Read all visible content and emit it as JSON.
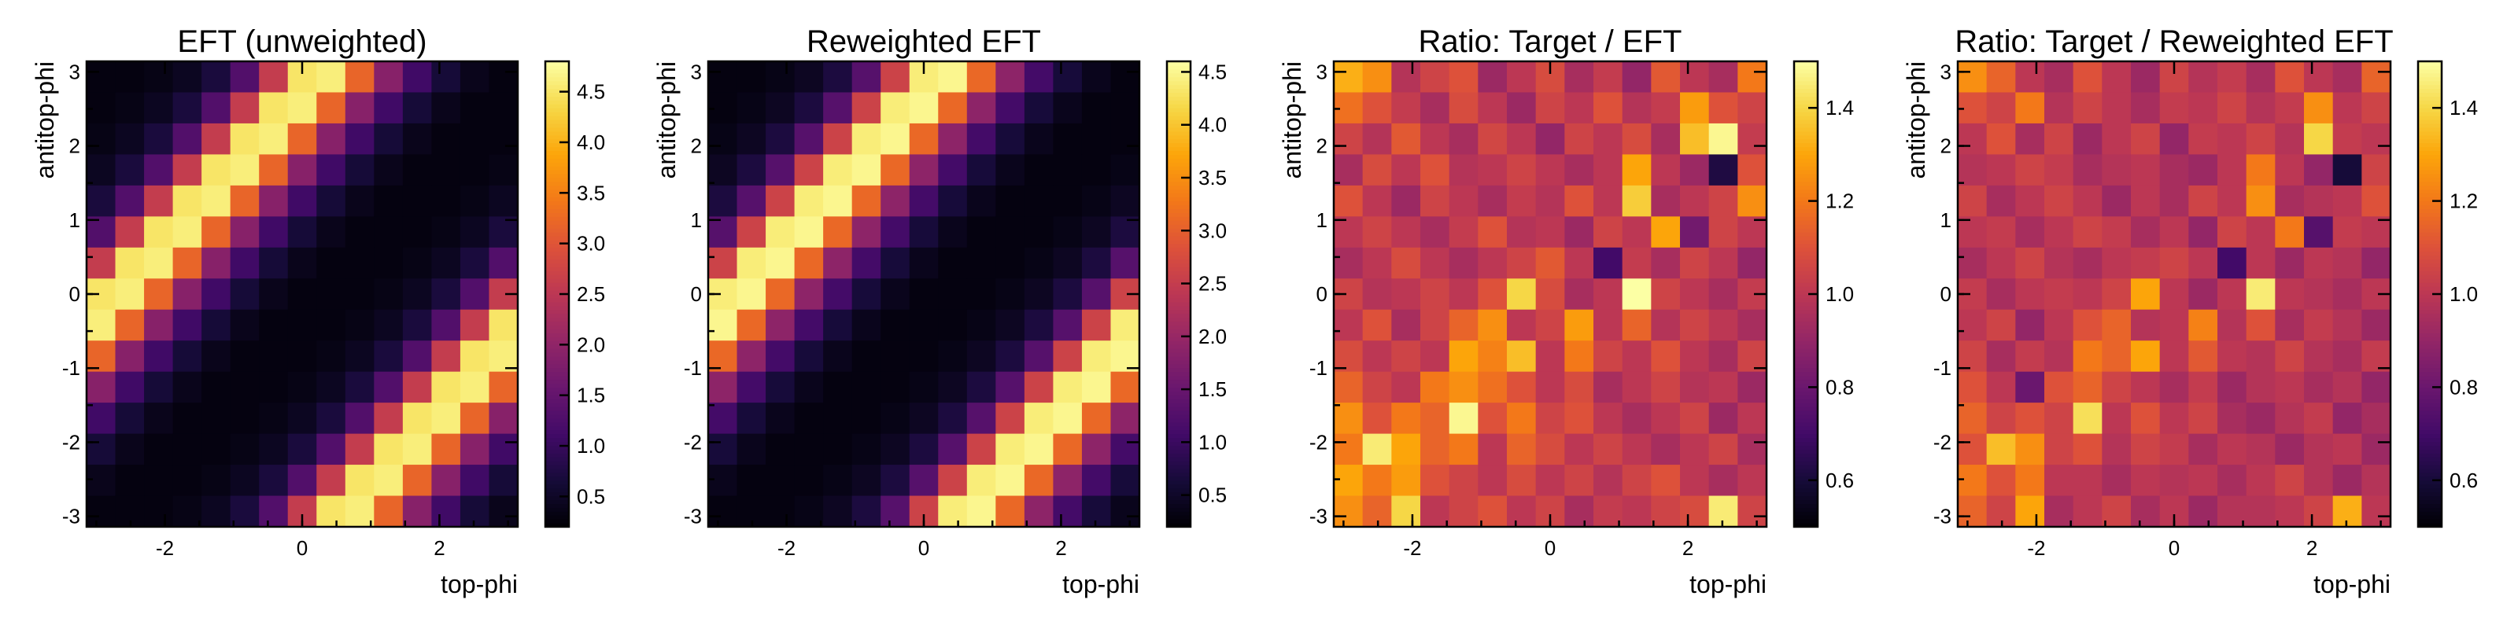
{
  "chart_data": [
    {
      "type": "heatmap",
      "title": "EFT (unweighted)",
      "xlabel": "top-phi",
      "ylabel": "antitop-phi",
      "xlim": [
        -3.14159,
        3.14159
      ],
      "ylim": [
        -3.14159,
        3.14159
      ],
      "bins": 15,
      "x_ticks": [
        "-2",
        "0",
        "2"
      ],
      "y_ticks": [
        "-3",
        "-2",
        "-1",
        "0",
        "1",
        "2",
        "3"
      ],
      "colorbar": {
        "colormap": "inferno",
        "range": [
          0.2,
          4.8
        ],
        "ticks": [
          "0.5",
          "1.0",
          "1.5",
          "2.0",
          "2.5",
          "3.0",
          "3.5",
          "4.0",
          "4.5"
        ]
      },
      "values": [
        [
          0.3,
          0.3,
          0.35,
          0.45,
          0.7,
          1.3,
          2.6,
          4.5,
          4.6,
          3.2,
          1.9,
          1.1,
          0.65,
          0.4,
          0.3
        ],
        [
          0.3,
          0.35,
          0.45,
          0.7,
          1.3,
          2.6,
          4.5,
          4.6,
          3.2,
          1.9,
          1.1,
          0.65,
          0.4,
          0.3,
          0.3
        ],
        [
          0.35,
          0.45,
          0.7,
          1.3,
          2.6,
          4.5,
          4.6,
          3.2,
          1.9,
          1.1,
          0.65,
          0.4,
          0.3,
          0.3,
          0.3
        ],
        [
          0.45,
          0.7,
          1.3,
          2.6,
          4.5,
          4.6,
          3.2,
          1.9,
          1.1,
          0.65,
          0.4,
          0.3,
          0.3,
          0.3,
          0.35
        ],
        [
          0.7,
          1.3,
          2.6,
          4.5,
          4.6,
          3.2,
          1.9,
          1.1,
          0.65,
          0.4,
          0.3,
          0.3,
          0.3,
          0.35,
          0.45
        ],
        [
          1.3,
          2.6,
          4.5,
          4.6,
          3.2,
          1.9,
          1.1,
          0.65,
          0.4,
          0.3,
          0.3,
          0.3,
          0.35,
          0.45,
          0.7
        ],
        [
          2.6,
          4.5,
          4.6,
          3.2,
          1.9,
          1.1,
          0.65,
          0.4,
          0.3,
          0.3,
          0.3,
          0.35,
          0.45,
          0.7,
          1.3
        ],
        [
          4.5,
          4.6,
          3.2,
          1.9,
          1.1,
          0.65,
          0.4,
          0.3,
          0.3,
          0.3,
          0.35,
          0.45,
          0.7,
          1.3,
          2.6
        ],
        [
          4.6,
          3.2,
          1.9,
          1.1,
          0.65,
          0.4,
          0.3,
          0.3,
          0.3,
          0.35,
          0.45,
          0.7,
          1.3,
          2.6,
          4.5
        ],
        [
          3.2,
          1.9,
          1.1,
          0.65,
          0.4,
          0.3,
          0.3,
          0.3,
          0.35,
          0.45,
          0.7,
          1.3,
          2.6,
          4.5,
          4.6
        ],
        [
          1.9,
          1.1,
          0.65,
          0.4,
          0.3,
          0.3,
          0.3,
          0.35,
          0.45,
          0.7,
          1.3,
          2.6,
          4.5,
          4.6,
          3.2
        ],
        [
          1.1,
          0.65,
          0.4,
          0.3,
          0.3,
          0.3,
          0.35,
          0.45,
          0.7,
          1.3,
          2.6,
          4.5,
          4.6,
          3.2,
          1.9
        ],
        [
          0.65,
          0.4,
          0.3,
          0.3,
          0.3,
          0.35,
          0.45,
          0.7,
          1.3,
          2.6,
          4.5,
          4.6,
          3.2,
          1.9,
          1.1
        ],
        [
          0.4,
          0.3,
          0.3,
          0.3,
          0.35,
          0.45,
          0.7,
          1.3,
          2.6,
          4.5,
          4.6,
          3.2,
          1.9,
          1.1,
          0.65
        ],
        [
          0.3,
          0.3,
          0.3,
          0.35,
          0.45,
          0.7,
          1.3,
          2.6,
          4.5,
          4.6,
          3.2,
          1.9,
          1.1,
          0.65,
          0.4
        ]
      ]
    },
    {
      "type": "heatmap",
      "title": "Reweighted EFT",
      "xlabel": "top-phi",
      "ylabel": "antitop-phi",
      "xlim": [
        -3.14159,
        3.14159
      ],
      "ylim": [
        -3.14159,
        3.14159
      ],
      "bins": 15,
      "x_ticks": [
        "-2",
        "0",
        "2"
      ],
      "y_ticks": [
        "-3",
        "-2",
        "-1",
        "0",
        "1",
        "2",
        "3"
      ],
      "colorbar": {
        "colormap": "inferno",
        "range": [
          0.2,
          4.6
        ],
        "ticks": [
          "0.5",
          "1.0",
          "1.5",
          "2.0",
          "2.5",
          "3.0",
          "3.5",
          "4.0",
          "4.5"
        ]
      },
      "values": [
        [
          0.3,
          0.3,
          0.35,
          0.45,
          0.7,
          1.3,
          2.6,
          4.4,
          4.5,
          3.1,
          1.9,
          1.1,
          0.65,
          0.4,
          0.3
        ],
        [
          0.3,
          0.35,
          0.45,
          0.7,
          1.3,
          2.6,
          4.4,
          4.5,
          3.1,
          1.9,
          1.1,
          0.65,
          0.4,
          0.3,
          0.3
        ],
        [
          0.35,
          0.45,
          0.7,
          1.3,
          2.6,
          4.4,
          4.5,
          3.1,
          1.9,
          1.1,
          0.65,
          0.4,
          0.3,
          0.3,
          0.3
        ],
        [
          0.45,
          0.7,
          1.3,
          2.6,
          4.4,
          4.5,
          3.1,
          1.9,
          1.1,
          0.65,
          0.4,
          0.3,
          0.3,
          0.3,
          0.35
        ],
        [
          0.7,
          1.3,
          2.6,
          4.4,
          4.5,
          3.1,
          1.9,
          1.1,
          0.65,
          0.4,
          0.3,
          0.3,
          0.3,
          0.35,
          0.45
        ],
        [
          1.3,
          2.6,
          4.4,
          4.5,
          3.1,
          1.9,
          1.1,
          0.65,
          0.4,
          0.3,
          0.3,
          0.3,
          0.35,
          0.45,
          0.7
        ],
        [
          2.6,
          4.4,
          4.5,
          3.1,
          1.9,
          1.1,
          0.65,
          0.4,
          0.3,
          0.3,
          0.3,
          0.35,
          0.45,
          0.7,
          1.3
        ],
        [
          4.4,
          4.5,
          3.1,
          1.9,
          1.1,
          0.65,
          0.4,
          0.3,
          0.3,
          0.3,
          0.35,
          0.45,
          0.7,
          1.3,
          2.6
        ],
        [
          4.5,
          3.1,
          1.9,
          1.1,
          0.65,
          0.4,
          0.3,
          0.3,
          0.3,
          0.35,
          0.45,
          0.7,
          1.3,
          2.6,
          4.4
        ],
        [
          3.1,
          1.9,
          1.1,
          0.65,
          0.4,
          0.3,
          0.3,
          0.3,
          0.35,
          0.45,
          0.7,
          1.3,
          2.6,
          4.4,
          4.5
        ],
        [
          1.9,
          1.1,
          0.65,
          0.4,
          0.3,
          0.3,
          0.3,
          0.35,
          0.45,
          0.7,
          1.3,
          2.6,
          4.4,
          4.5,
          3.1
        ],
        [
          1.1,
          0.65,
          0.4,
          0.3,
          0.3,
          0.3,
          0.35,
          0.45,
          0.7,
          1.3,
          2.6,
          4.4,
          4.5,
          3.1,
          1.9
        ],
        [
          0.65,
          0.4,
          0.3,
          0.3,
          0.3,
          0.35,
          0.45,
          0.7,
          1.3,
          2.6,
          4.4,
          4.5,
          3.1,
          1.9,
          1.1
        ],
        [
          0.4,
          0.3,
          0.3,
          0.3,
          0.35,
          0.45,
          0.7,
          1.3,
          2.6,
          4.4,
          4.5,
          3.1,
          1.9,
          1.1,
          0.65
        ],
        [
          0.3,
          0.3,
          0.3,
          0.35,
          0.45,
          0.7,
          1.3,
          2.6,
          4.4,
          4.5,
          3.1,
          1.9,
          1.1,
          0.65,
          0.4
        ]
      ]
    },
    {
      "type": "heatmap",
      "title": "Ratio: Target / EFT",
      "xlabel": "top-phi",
      "ylabel": "antitop-phi",
      "xlim": [
        -3.14159,
        3.14159
      ],
      "ylim": [
        -3.14159,
        3.14159
      ],
      "bins": 15,
      "x_ticks": [
        "-2",
        "0",
        "2"
      ],
      "y_ticks": [
        "-3",
        "-2",
        "-1",
        "0",
        "1",
        "2",
        "3"
      ],
      "colorbar": {
        "colormap": "inferno",
        "range": [
          0.5,
          1.5
        ],
        "ticks": [
          "0.6",
          "0.8",
          "1.0",
          "1.2",
          "1.4"
        ]
      },
      "values": [
        [
          1.32,
          1.25,
          0.98,
          1.05,
          1.1,
          0.92,
          1.0,
          1.08,
          0.95,
          1.02,
          0.9,
          1.12,
          1.0,
          0.95,
          1.2
        ],
        [
          1.18,
          1.1,
          1.02,
          0.95,
          1.08,
          1.0,
          0.92,
          1.05,
          1.0,
          1.1,
          0.98,
          1.02,
          1.28,
          1.1,
          1.05
        ],
        [
          1.05,
          0.98,
          1.12,
          1.0,
          0.95,
          1.06,
          1.0,
          0.9,
          1.05,
          1.0,
          1.08,
          0.95,
          1.35,
          1.48,
          1.02
        ],
        [
          0.95,
          1.08,
          1.0,
          1.1,
          0.98,
          1.0,
          1.05,
          1.0,
          0.95,
          1.0,
          1.3,
          1.0,
          0.92,
          0.62,
          1.1
        ],
        [
          1.1,
          1.0,
          0.92,
          1.05,
          1.0,
          0.95,
          1.02,
          0.98,
          1.1,
          1.0,
          1.38,
          0.95,
          1.0,
          1.05,
          1.25
        ],
        [
          1.0,
          1.05,
          1.0,
          0.95,
          1.02,
          1.1,
          0.98,
          1.0,
          0.92,
          1.05,
          1.0,
          1.3,
          0.82,
          1.05,
          1.0
        ],
        [
          0.95,
          1.0,
          1.08,
          1.0,
          0.95,
          1.0,
          1.05,
          1.12,
          1.0,
          0.7,
          1.02,
          0.95,
          1.05,
          1.0,
          0.9
        ],
        [
          1.05,
          0.98,
          1.0,
          1.05,
          1.0,
          1.1,
          1.4,
          1.08,
          0.95,
          1.0,
          1.52,
          1.05,
          1.0,
          0.95,
          1.02
        ],
        [
          1.0,
          1.1,
          0.95,
          1.05,
          1.15,
          1.25,
          1.0,
          1.05,
          1.28,
          1.0,
          1.15,
          0.98,
          1.05,
          1.0,
          0.95
        ],
        [
          1.08,
          1.0,
          1.05,
          1.0,
          1.3,
          1.22,
          1.35,
          1.0,
          1.2,
          1.05,
          1.0,
          1.1,
          1.0,
          0.95,
          1.05
        ],
        [
          1.15,
          1.05,
          1.0,
          1.2,
          1.25,
          1.18,
          1.1,
          1.0,
          1.08,
          0.95,
          1.0,
          1.05,
          0.98,
          1.0,
          0.92
        ],
        [
          1.25,
          1.1,
          1.2,
          1.15,
          1.48,
          1.1,
          1.2,
          1.05,
          1.1,
          1.0,
          0.95,
          1.0,
          1.05,
          0.92,
          1.0
        ],
        [
          1.2,
          1.45,
          1.3,
          1.15,
          1.2,
          1.0,
          1.15,
          1.08,
          1.0,
          1.05,
          1.0,
          0.95,
          1.0,
          1.05,
          0.95
        ],
        [
          1.3,
          1.2,
          1.28,
          1.1,
          1.05,
          1.0,
          1.08,
          1.0,
          1.05,
          0.98,
          1.05,
          1.1,
          1.0,
          0.95,
          1.0
        ],
        [
          1.25,
          1.15,
          1.4,
          1.0,
          1.05,
          1.1,
          1.0,
          1.05,
          0.95,
          1.02,
          1.0,
          1.05,
          1.08,
          1.45,
          1.05
        ]
      ]
    },
    {
      "type": "heatmap",
      "title": "Ratio: Target / Reweighted EFT",
      "xlabel": "top-phi",
      "ylabel": "antitop-phi",
      "xlim": [
        -3.14159,
        3.14159
      ],
      "ylim": [
        -3.14159,
        3.14159
      ],
      "bins": 15,
      "x_ticks": [
        "-2",
        "0",
        "2"
      ],
      "y_ticks": [
        "-3",
        "-2",
        "-1",
        "0",
        "1",
        "2",
        "3"
      ],
      "colorbar": {
        "colormap": "inferno",
        "range": [
          0.5,
          1.5
        ],
        "ticks": [
          "0.6",
          "0.8",
          "1.0",
          "1.2",
          "1.4"
        ]
      },
      "values": [
        [
          1.25,
          1.15,
          1.0,
          0.95,
          1.1,
          1.0,
          0.92,
          1.05,
          0.98,
          1.02,
          0.95,
          1.1,
          1.0,
          0.95,
          1.15
        ],
        [
          1.1,
          1.05,
          1.2,
          0.98,
          1.05,
          1.0,
          0.95,
          1.02,
          1.0,
          1.05,
          0.98,
          1.02,
          1.25,
          1.0,
          1.05
        ],
        [
          1.0,
          1.1,
          0.95,
          1.05,
          0.92,
          1.0,
          1.05,
          0.9,
          1.02,
          1.0,
          1.05,
          0.98,
          1.4,
          1.02,
          1.0
        ],
        [
          0.98,
          1.0,
          1.05,
          1.02,
          0.95,
          0.98,
          1.0,
          0.95,
          0.92,
          1.0,
          1.2,
          1.0,
          0.9,
          0.6,
          1.05
        ],
        [
          1.05,
          0.95,
          1.0,
          1.05,
          1.0,
          0.92,
          1.0,
          0.95,
          1.05,
          1.0,
          1.25,
          0.95,
          0.98,
          1.0,
          1.1
        ],
        [
          1.0,
          1.02,
          0.95,
          1.0,
          1.05,
          1.02,
          0.95,
          1.0,
          0.9,
          1.05,
          1.0,
          1.2,
          0.75,
          1.02,
          1.0
        ],
        [
          0.95,
          1.0,
          1.05,
          0.98,
          0.95,
          1.0,
          1.02,
          1.05,
          1.0,
          0.7,
          1.0,
          0.92,
          1.0,
          0.98,
          0.9
        ],
        [
          1.02,
          0.95,
          1.0,
          1.02,
          1.0,
          1.05,
          1.3,
          1.0,
          0.92,
          1.0,
          1.45,
          1.0,
          0.98,
          0.95,
          1.0
        ],
        [
          1.0,
          1.05,
          0.9,
          1.0,
          1.1,
          1.15,
          0.98,
          1.0,
          1.22,
          0.98,
          1.1,
          0.95,
          1.02,
          0.98,
          0.92
        ],
        [
          1.05,
          0.95,
          1.02,
          0.98,
          1.2,
          1.15,
          1.3,
          1.0,
          1.12,
          1.0,
          0.98,
          1.05,
          0.98,
          0.95,
          1.02
        ],
        [
          1.1,
          1.0,
          0.8,
          1.1,
          1.15,
          1.05,
          1.0,
          0.95,
          1.02,
          0.92,
          0.98,
          1.0,
          0.95,
          0.98,
          0.9
        ],
        [
          1.15,
          1.05,
          1.1,
          1.05,
          1.42,
          1.0,
          1.1,
          1.0,
          1.05,
          0.95,
          0.92,
          0.98,
          1.02,
          0.9,
          0.95
        ],
        [
          1.1,
          1.35,
          1.25,
          1.05,
          1.1,
          0.98,
          1.05,
          1.02,
          0.95,
          1.0,
          0.98,
          0.92,
          0.98,
          1.0,
          0.92
        ],
        [
          1.2,
          1.1,
          1.2,
          1.0,
          1.0,
          0.95,
          1.0,
          0.98,
          1.0,
          0.95,
          1.0,
          1.05,
          0.98,
          0.92,
          0.98
        ],
        [
          1.15,
          1.05,
          1.3,
          0.95,
          1.0,
          1.05,
          0.95,
          1.0,
          0.92,
          0.98,
          0.98,
          1.0,
          1.05,
          1.32,
          1.0
        ]
      ]
    }
  ]
}
